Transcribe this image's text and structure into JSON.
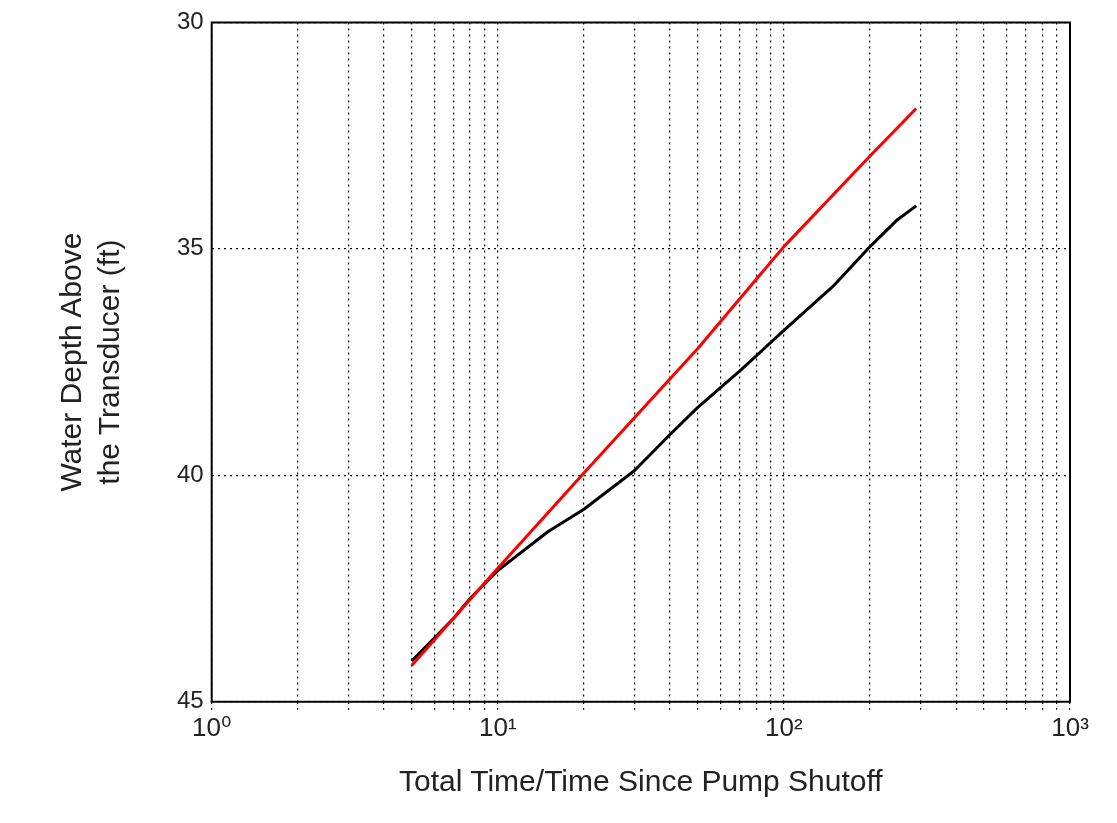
{
  "chart_data": {
    "type": "line",
    "xlabel": "Total Time/Time Since Pump Shutoff",
    "ylabel": "Water Depth Above\nthe Transducer (ft)",
    "log": "x",
    "grid": true,
    "marker": "none",
    "line_style": "solid",
    "xlim": [
      1,
      1000
    ],
    "ylim": [
      45,
      30
    ],
    "xticks": [
      {
        "value": 1,
        "label": "10⁰"
      },
      {
        "value": 2,
        "label": null
      },
      {
        "value": 3,
        "label": null
      },
      {
        "value": 4,
        "label": null
      },
      {
        "value": 5,
        "label": null
      },
      {
        "value": 6,
        "label": null
      },
      {
        "value": 7,
        "label": null
      },
      {
        "value": 8,
        "label": null
      },
      {
        "value": 9,
        "label": null
      },
      {
        "value": 10,
        "label": "10¹"
      },
      {
        "value": 20,
        "label": null
      },
      {
        "value": 30,
        "label": null
      },
      {
        "value": 40,
        "label": null
      },
      {
        "value": 50,
        "label": null
      },
      {
        "value": 60,
        "label": null
      },
      {
        "value": 70,
        "label": null
      },
      {
        "value": 80,
        "label": null
      },
      {
        "value": 90,
        "label": null
      },
      {
        "value": 100,
        "label": "10²"
      },
      {
        "value": 200,
        "label": null
      },
      {
        "value": 300,
        "label": null
      },
      {
        "value": 400,
        "label": null
      },
      {
        "value": 500,
        "label": null
      },
      {
        "value": 600,
        "label": null
      },
      {
        "value": 700,
        "label": null
      },
      {
        "value": 800,
        "label": null
      },
      {
        "value": 900,
        "label": null
      },
      {
        "value": 1000,
        "label": "10³"
      }
    ],
    "yticks": [
      30,
      35,
      40,
      45
    ],
    "series": [
      {
        "color": "#ff0000",
        "x": [
          5,
          10,
          20,
          50,
          100,
          200,
          290
        ],
        "values": [
          44.2,
          42.05,
          39.95,
          37.2,
          34.95,
          32.95,
          31.9
        ]
      },
      {
        "color": "#000000",
        "x": [
          5,
          7,
          8,
          10,
          15,
          20,
          30,
          40,
          50,
          70,
          100,
          150,
          200,
          250,
          290
        ],
        "values": [
          44.1,
          43.16,
          42.72,
          42.1,
          41.24,
          40.75,
          39.9,
          39.1,
          38.5,
          37.7,
          36.8,
          35.8,
          34.95,
          34.35,
          34.05
        ]
      }
    ]
  }
}
